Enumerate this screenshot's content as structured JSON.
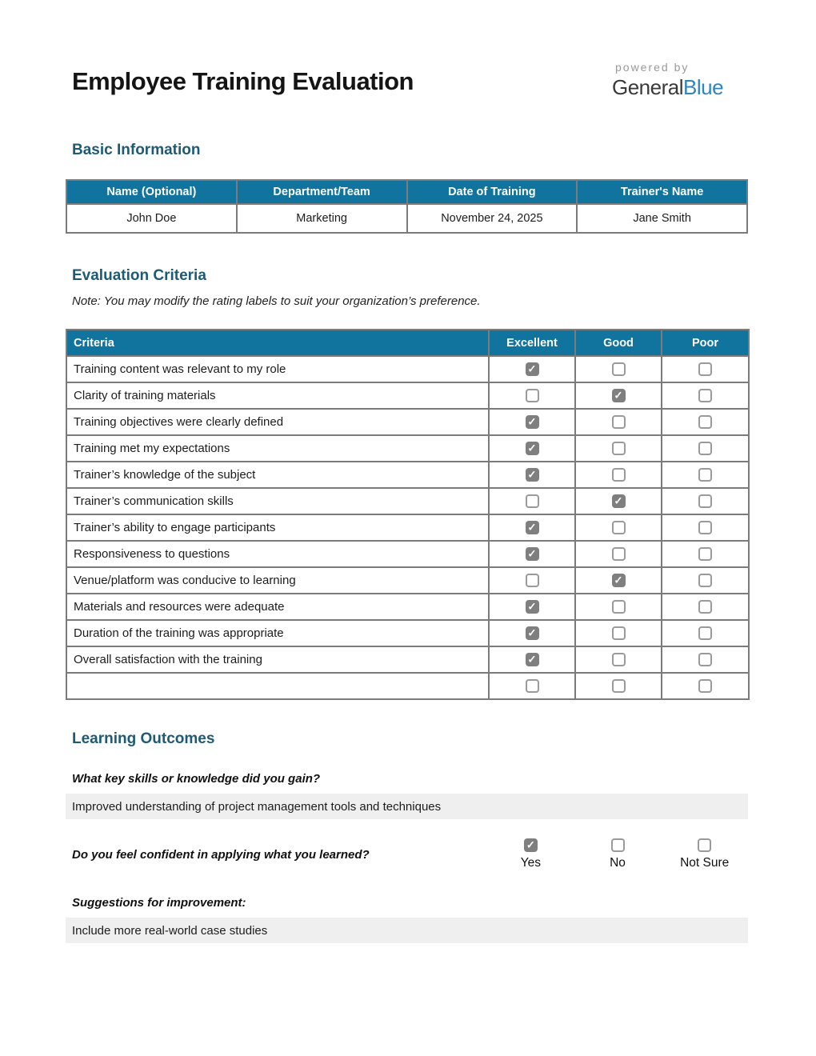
{
  "page": {
    "title": "Employee Training Evaluation",
    "logo": {
      "powered_by": "powered by",
      "brand_general": "General",
      "brand_blue": "Blue"
    }
  },
  "colors": {
    "table_header_bg": "#11749e",
    "section_heading": "#1d5a74",
    "logo_blue": "#2e86c1",
    "checked_box_fill": "#7f7f7f",
    "table_border": "#7b7b7b",
    "answer_row_bg": "#efefef"
  },
  "basic_info": {
    "heading": "Basic Information",
    "columns": [
      "Name (Optional)",
      "Department/Team",
      "Date of Training",
      "Trainer's Name"
    ],
    "values": [
      "John Doe",
      "Marketing",
      "November 24, 2025",
      "Jane Smith"
    ]
  },
  "evaluation": {
    "heading": "Evaluation Criteria",
    "note": "Note: You may modify the rating labels to suit your organization’s preference.",
    "columns": {
      "criteria": "Criteria",
      "ratings": [
        "Excellent",
        "Good",
        "Poor"
      ]
    },
    "rows": [
      {
        "criteria": "Training content was relevant to my role",
        "rating": "Excellent"
      },
      {
        "criteria": "Clarity of training materials",
        "rating": "Good"
      },
      {
        "criteria": "Training objectives were clearly defined",
        "rating": "Excellent"
      },
      {
        "criteria": "Training met my expectations",
        "rating": "Excellent"
      },
      {
        "criteria": "Trainer’s knowledge of the subject",
        "rating": "Excellent"
      },
      {
        "criteria": "Trainer’s communication skills",
        "rating": "Good"
      },
      {
        "criteria": "Trainer’s ability to engage participants",
        "rating": "Excellent"
      },
      {
        "criteria": "Responsiveness to questions",
        "rating": "Excellent"
      },
      {
        "criteria": "Venue/platform was conducive to learning",
        "rating": "Good"
      },
      {
        "criteria": "Materials and resources were adequate",
        "rating": "Excellent"
      },
      {
        "criteria": "Duration of the training was appropriate",
        "rating": "Excellent"
      },
      {
        "criteria": "Overall satisfaction with the training",
        "rating": "Excellent"
      },
      {
        "criteria": "",
        "rating": null
      }
    ]
  },
  "learning_outcomes": {
    "heading": "Learning Outcomes",
    "q_skills": {
      "question": "What key skills or knowledge did you gain?",
      "answer": "Improved understanding of project management tools and techniques"
    },
    "q_confidence": {
      "question": "Do you feel confident in applying what you learned?",
      "options": [
        {
          "label": "Yes",
          "checked": true
        },
        {
          "label": "No",
          "checked": false
        },
        {
          "label": "Not Sure",
          "checked": false
        }
      ]
    },
    "q_suggestions": {
      "question": "Suggestions for improvement:",
      "answer": "Include more real-world case studies"
    }
  }
}
